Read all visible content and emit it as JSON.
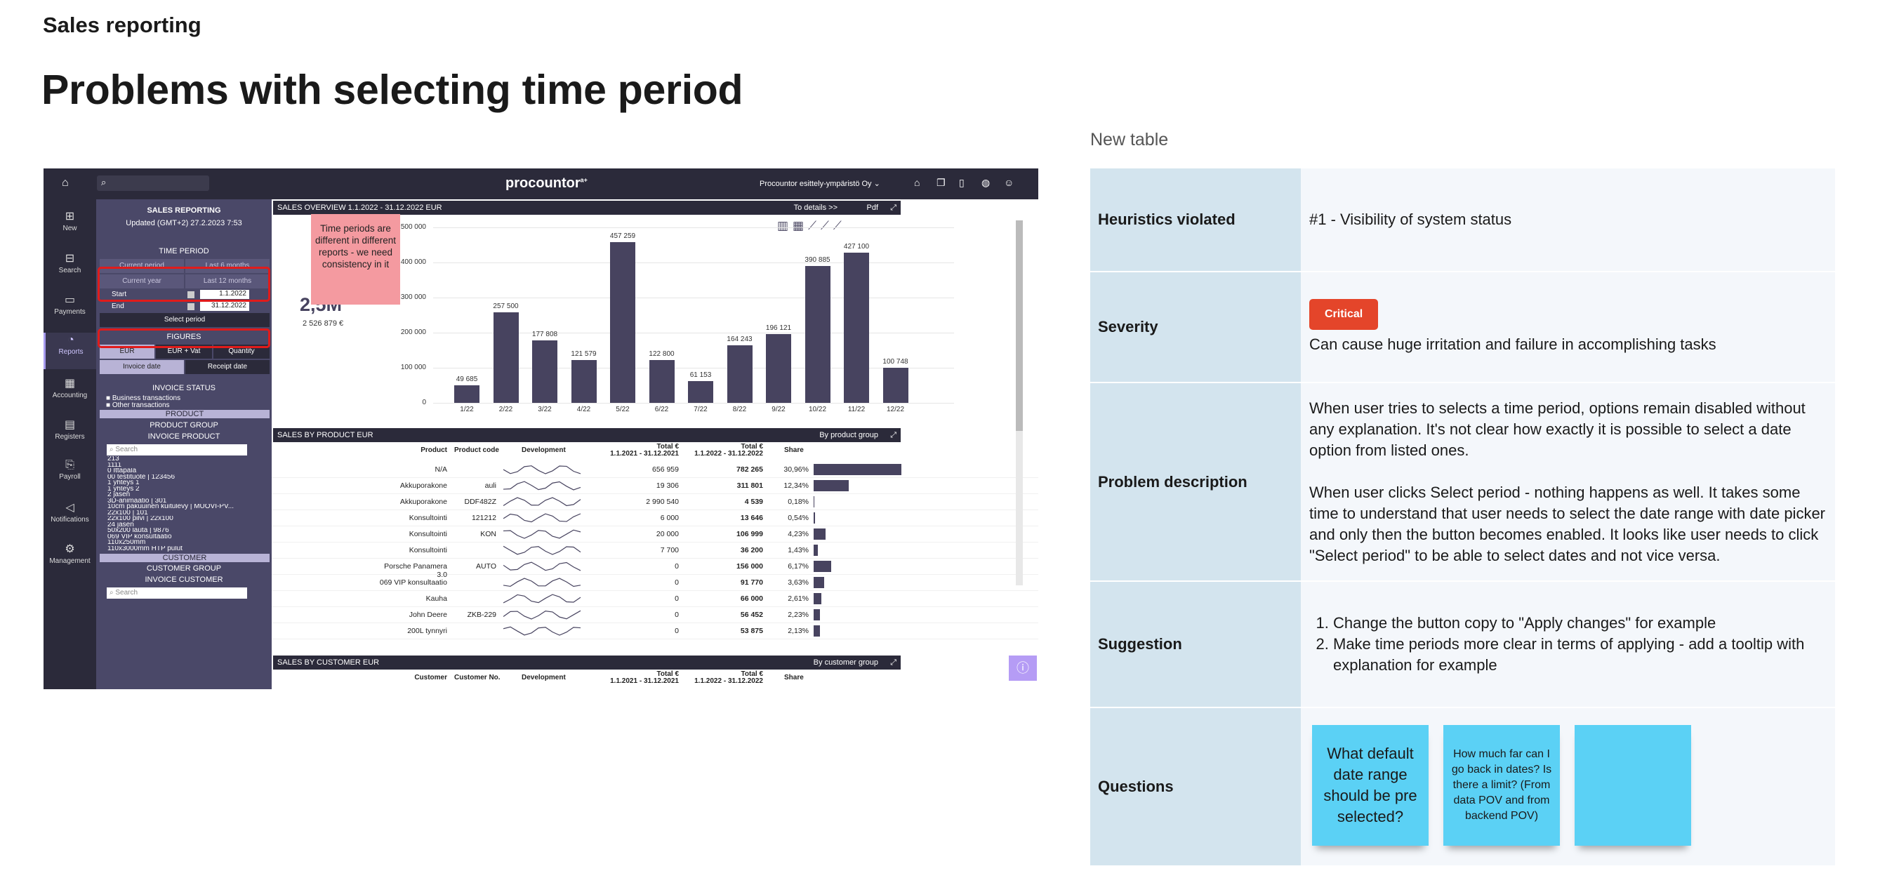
{
  "header": {
    "eyebrow": "Sales reporting",
    "title": "Problems with selecting time period",
    "table_title": "New table"
  },
  "table": {
    "heuristics": {
      "label": "Heuristics violated",
      "value": "#1 - Visibility of system status"
    },
    "severity": {
      "label": "Severity",
      "badge": "Critical",
      "value": "Can cause huge irritation and failure in accomplishing tasks"
    },
    "problem": {
      "label": "Problem description",
      "p1": "When user tries to selects a time period, options remain disabled without any explanation. It's not clear how exactly it is possible to select a date option from listed ones.",
      "p2": "When user clicks Select period - nothing happens as well. It takes some time to understand that user needs to select the date range with date picker and only then the button becomes enabled. It looks like user needs to click \"Select period\" to be able to select dates and not vice versa."
    },
    "suggestion": {
      "label": "Suggestion",
      "items": [
        "Change the button copy to \"Apply changes\" for example",
        "Make time periods more clear in terms of applying - add a tooltip with explanation for example"
      ]
    },
    "questions": {
      "label": "Questions",
      "notes": [
        "What default date range should be pre selected?",
        "How much far can I go back in dates? Is there a limit? (From data POV and from backend POV)",
        ""
      ]
    }
  },
  "app": {
    "brand": "procountor",
    "brand_sup": "a+",
    "company": "Procountor esittely-ympäristö Oy",
    "nav": [
      "New",
      "Search",
      "Payments",
      "Reports",
      "Accounting",
      "Registers",
      "Payroll",
      "Notifications",
      "Management"
    ],
    "side": {
      "title": "SALES REPORTING",
      "updated": "Updated (GMT+2)  27.2.2023 7:53",
      "time_period": "TIME PERIOD",
      "current_period": "Current period",
      "last6": "Last 6 months",
      "current_year": "Current year",
      "last12": "Last 12 months",
      "start_label": "Start",
      "start_value": "1.1.2022",
      "end_label": "End",
      "end_value": "31.12.2022",
      "select_period": "Select period",
      "figures": "FIGURES",
      "eur": "EUR",
      "eur_vat": "EUR + Vat",
      "quantity": "Quantity",
      "invoice_date": "Invoice date",
      "receipt_date": "Receipt date",
      "invoice_status": "INVOICE STATUS",
      "business_tx": "Business transactions",
      "other_tx": "Other transactions",
      "product": "PRODUCT",
      "product_group": "PRODUCT GROUP",
      "invoice_product": "INVOICE PRODUCT",
      "search": "Search",
      "products": [
        "213",
        "1111",
        "0 Ittapala",
        "00 testituote | 123456",
        "1 yhteys 1",
        "1 yhteys 2",
        "2 jäsen",
        "3D-animaatio | 301",
        "10cm pakuuinen kuitulevy | MUOVI-PV...",
        "22x100 | 101",
        "22x100 pilvi | 22x100",
        "24 jäsen",
        "50x200 lauta | 9876",
        "069 VIP konsultaatio",
        "110x250mm",
        "110x3000mm HTP pulut"
      ],
      "customer": "CUSTOMER",
      "customer_group": "CUSTOMER GROUP",
      "invoice_customer": "INVOICE CUSTOMER",
      "search2": "Search"
    },
    "tooltip": "Time periods are different in different reports - we need consistency in it",
    "overview": {
      "title": "SALES OVERVIEW 1.1.2022 - 31.12.2022  EUR",
      "details": "To details >>",
      "pdf": "Pdf",
      "total": "2,5M",
      "total_exact": "2 526 879 €"
    },
    "by_product": {
      "title": "SALES BY PRODUCT  EUR",
      "group": "By product group",
      "headers": [
        "Product",
        "Product code",
        "Development",
        "Total €",
        "1.1.2021 - 31.12.2021",
        "Total €",
        "1.1.2022 - 31.12.2022",
        "Share"
      ],
      "rows": [
        {
          "product": "N/A",
          "code": "",
          "t1": "656 959",
          "t2": "782 265",
          "share": "30,96%",
          "pct": 30.96
        },
        {
          "product": "Akkuporakone",
          "code": "auli",
          "t1": "19 306",
          "t2": "311 801",
          "share": "12,34%",
          "pct": 12.34
        },
        {
          "product": "Akkuporakone",
          "code": "DDF482Z",
          "t1": "2 990 540",
          "t2": "4 539",
          "share": "0,18%",
          "pct": 0.18
        },
        {
          "product": "Konsultointi",
          "code": "121212",
          "t1": "6 000",
          "t2": "13 646",
          "share": "0,54%",
          "pct": 0.54
        },
        {
          "product": "Konsultointi",
          "code": "KON",
          "t1": "20 000",
          "t2": "106 999",
          "share": "4,23%",
          "pct": 4.23
        },
        {
          "product": "Konsultointi",
          "code": "",
          "t1": "7 700",
          "t2": "36 200",
          "share": "1,43%",
          "pct": 1.43
        },
        {
          "product": "Porsche Panamera 3.0",
          "code": "AUTO",
          "t1": "0",
          "t2": "156 000",
          "share": "6,17%",
          "pct": 6.17
        },
        {
          "product": "069 VIP konsultaatio",
          "code": "",
          "t1": "0",
          "t2": "91 770",
          "share": "3,63%",
          "pct": 3.63
        },
        {
          "product": "Kauha",
          "code": "",
          "t1": "0",
          "t2": "66 000",
          "share": "2,61%",
          "pct": 2.61
        },
        {
          "product": "John Deere",
          "code": "ZKB-229",
          "t1": "0",
          "t2": "56 452",
          "share": "2,23%",
          "pct": 2.23
        },
        {
          "product": "200L tynnyri",
          "code": "",
          "t1": "0",
          "t2": "53 875",
          "share": "2,13%",
          "pct": 2.13
        }
      ]
    },
    "by_customer": {
      "title": "SALES BY CUSTOMER  EUR",
      "group": "By customer group",
      "headers": [
        "Customer",
        "Customer No.",
        "Development",
        "Total €",
        "1.1.2021 - 31.12.2021",
        "Total €",
        "1.1.2022 - 31.12.2022",
        "Share"
      ]
    }
  },
  "chart_data": {
    "type": "bar",
    "categories": [
      "1/22",
      "2/22",
      "3/22",
      "4/22",
      "5/22",
      "6/22",
      "7/22",
      "8/22",
      "9/22",
      "10/22",
      "11/22",
      "12/22"
    ],
    "values": [
      49685,
      257500,
      177808,
      121579,
      457259,
      122800,
      61153,
      164243,
      196121,
      390885,
      427100,
      100748
    ],
    "labels": [
      "49 685",
      "257 500",
      "177 808",
      "121 579",
      "457 259",
      "122 800",
      "61 153",
      "164 243",
      "196 121",
      "390 885",
      "427 100",
      "100 748"
    ],
    "yticks": [
      "0",
      "100 000",
      "200 000",
      "300 000",
      "400 000",
      "500 000"
    ],
    "ylim": [
      0,
      500000
    ]
  }
}
